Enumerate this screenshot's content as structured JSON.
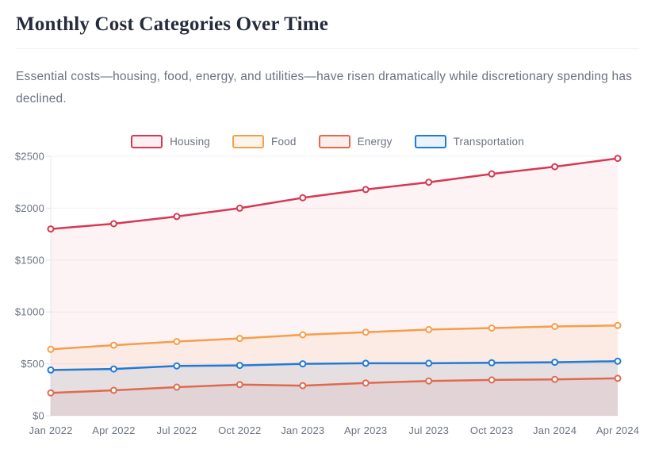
{
  "page": {
    "title": "Monthly Cost Categories Over Time",
    "description": "Essential costs—housing, food, energy, and utilities—have risen dramatically while discretionary spending has declined."
  },
  "chart_data": {
    "type": "line",
    "title": "Monthly Cost Categories Over Time",
    "xlabel": "",
    "ylabel": "",
    "ylim": [
      0,
      2500
    ],
    "grid": true,
    "legend_position": "top",
    "categories": [
      "Jan 2022",
      "Apr 2022",
      "Jul 2022",
      "Oct 2022",
      "Jan 2023",
      "Apr 2023",
      "Jul 2023",
      "Oct 2023",
      "Jan 2024",
      "Apr 2024"
    ],
    "y_ticks": [
      {
        "value": 0,
        "label": "$0"
      },
      {
        "value": 500,
        "label": "$500"
      },
      {
        "value": 1000,
        "label": "$1000"
      },
      {
        "value": 1500,
        "label": "$1500"
      },
      {
        "value": 2000,
        "label": "$2000"
      },
      {
        "value": 2500,
        "label": "$2500"
      }
    ],
    "series": [
      {
        "name": "Housing",
        "color": "#d63954",
        "swatch_fill": "#fdeff2",
        "fill_alpha": 0.06,
        "values": [
          1800,
          1850,
          1920,
          2000,
          2100,
          2180,
          2250,
          2330,
          2400,
          2480
        ]
      },
      {
        "name": "Food",
        "color": "#f59e4a",
        "swatch_fill": "#fef5ea",
        "fill_alpha": 0.1,
        "values": [
          640,
          680,
          715,
          745,
          780,
          805,
          830,
          845,
          860,
          870
        ]
      },
      {
        "name": "Energy",
        "color": "#e06a4e",
        "swatch_fill": "#fcefeb",
        "fill_alpha": 0.09,
        "values": [
          220,
          245,
          275,
          300,
          290,
          315,
          335,
          345,
          350,
          360
        ]
      },
      {
        "name": "Transportation",
        "color": "#217bd4",
        "swatch_fill": "#eaf2fb",
        "fill_alpha": 0.1,
        "values": [
          440,
          450,
          480,
          485,
          500,
          505,
          505,
          510,
          515,
          525
        ]
      }
    ]
  },
  "theme": {
    "title_color": "#252b3b",
    "text_color": "#6b7280",
    "divider_color": "#ededf0",
    "gridline_color": "#f2f1f5",
    "axis_color": "#e6e7eb"
  }
}
